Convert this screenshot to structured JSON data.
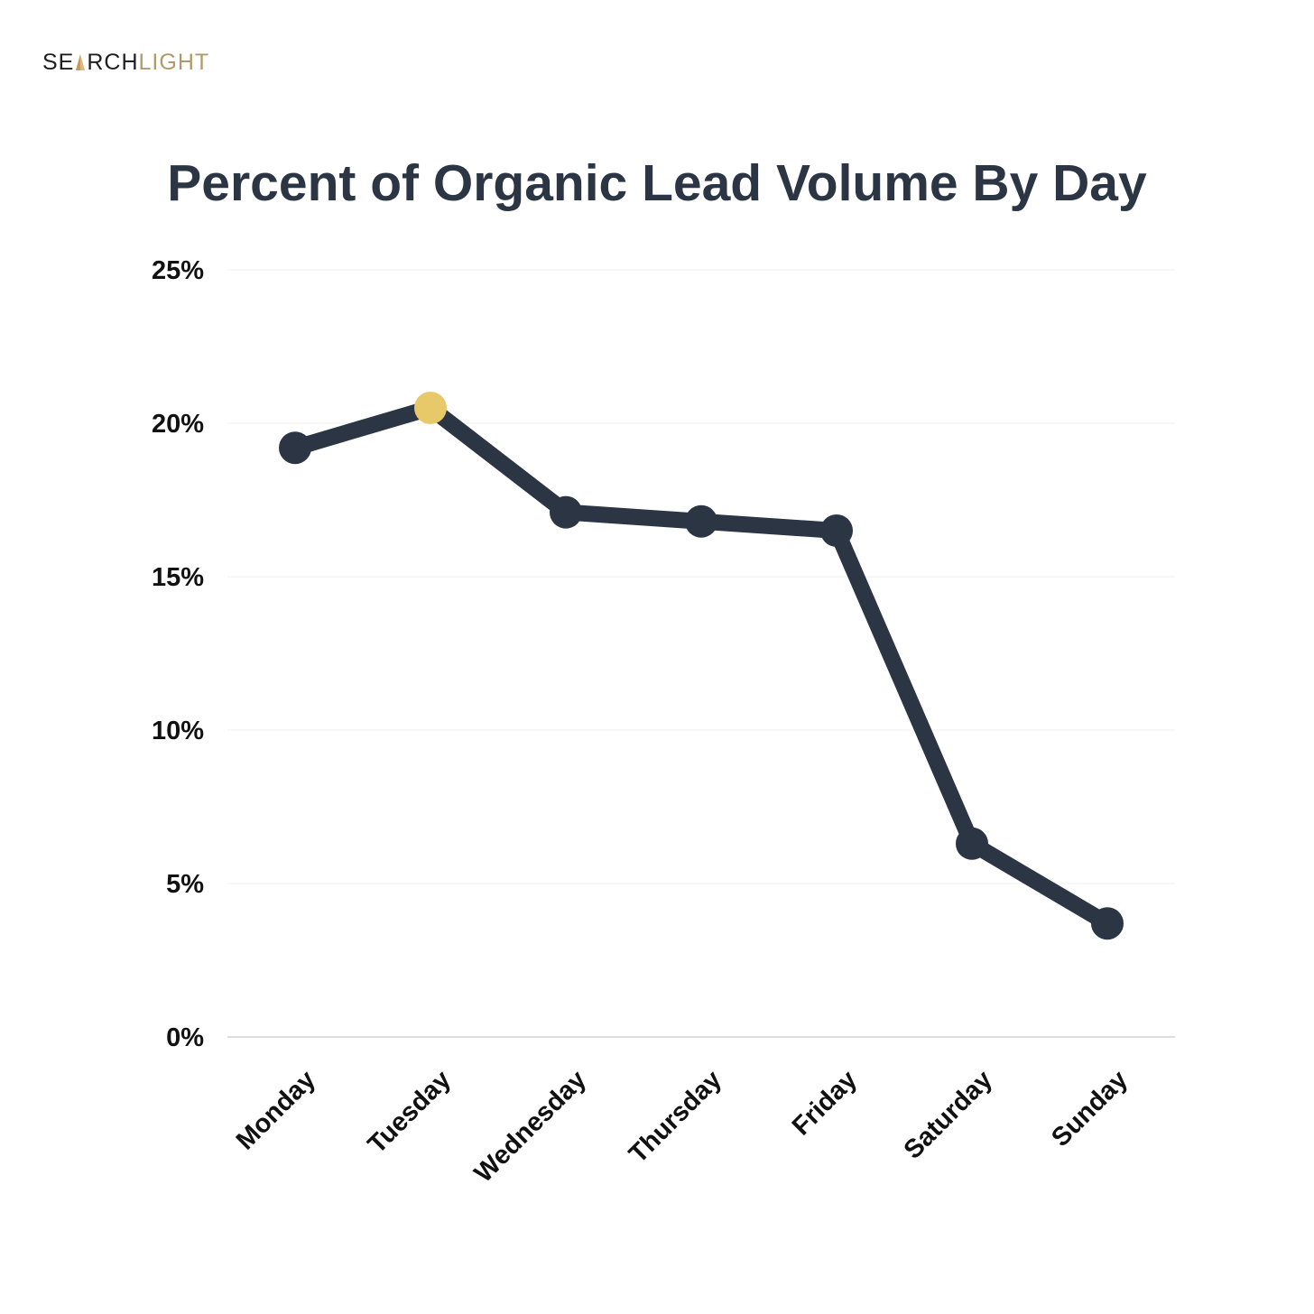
{
  "brand": {
    "part1": "SE",
    "part2": "RCH",
    "part3": "LIGHT",
    "logo_icon": "a-triangle-mark",
    "colors": {
      "dark": "#1f1f1f",
      "gold": "#b09a6a"
    }
  },
  "chart_data": {
    "type": "line",
    "title": "Percent of Organic Lead Volume By Day",
    "xlabel": "",
    "ylabel": "",
    "categories": [
      "Monday",
      "Tuesday",
      "Wednesday",
      "Thursday",
      "Friday",
      "Saturday",
      "Sunday"
    ],
    "series": [
      {
        "values": [
          19.2,
          20.5,
          17.1,
          16.8,
          16.5,
          6.3,
          3.7
        ],
        "color": "#2b3544",
        "highlight_index": 1,
        "highlight_color": "#e8c96a"
      }
    ],
    "ylim": [
      0,
      25
    ],
    "yticks": [
      0,
      5,
      10,
      15,
      20,
      25
    ],
    "ytick_labels": [
      "0%",
      "5%",
      "10%",
      "15%",
      "20%",
      "25%"
    ],
    "grid": true,
    "legend": "none"
  }
}
